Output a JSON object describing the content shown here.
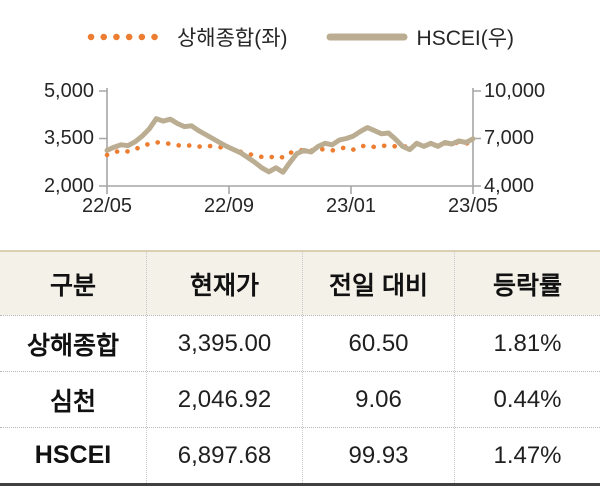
{
  "legend": {
    "shanghai_label": "상해종합(좌)",
    "hscei_label": "HSCEI(우)"
  },
  "chart_data": {
    "type": "line",
    "title": "",
    "x_ticks": [
      "22/05",
      "22/09",
      "23/01",
      "23/05"
    ],
    "x_range": [
      "2022-05",
      "2023-05"
    ],
    "grid": false,
    "legend_position": "top",
    "left_axis": {
      "ticks": [
        "5,000",
        "3,500",
        "2,000"
      ],
      "min": 2000,
      "max": 5000
    },
    "right_axis": {
      "ticks": [
        "10,000",
        "7,000",
        "4,000"
      ],
      "min": 4000,
      "max": 10000
    },
    "series": [
      {
        "name": "상해종합(좌)",
        "axis": "left",
        "style": "dotted",
        "color": "#ED7D31",
        "values": [
          2980,
          3060,
          3120,
          3090,
          3160,
          3260,
          3330,
          3380,
          3360,
          3330,
          3290,
          3260,
          3290,
          3240,
          3280,
          3250,
          3220,
          3250,
          3150,
          3080,
          3020,
          2960,
          2920,
          2890,
          2950,
          2900,
          3050,
          3100,
          3150,
          3120,
          3170,
          3150,
          3120,
          3180,
          3220,
          3150,
          3250,
          3280,
          3230,
          3260,
          3290,
          3250,
          3220,
          3300,
          3320,
          3260,
          3320,
          3280,
          3350,
          3330,
          3380,
          3340,
          3395
        ]
      },
      {
        "name": "HSCEI(우)",
        "axis": "right",
        "style": "solid",
        "color": "#BBAD92",
        "values": [
          6250,
          6450,
          6600,
          6550,
          6800,
          7150,
          7600,
          8250,
          8100,
          8220,
          7950,
          7750,
          7800,
          7500,
          7250,
          7000,
          6750,
          6500,
          6300,
          6100,
          5800,
          5500,
          5150,
          4900,
          5150,
          4870,
          5500,
          6050,
          6250,
          6150,
          6500,
          6700,
          6600,
          6900,
          7000,
          7150,
          7450,
          7690,
          7500,
          7300,
          7350,
          6950,
          6500,
          6300,
          6700,
          6500,
          6700,
          6500,
          6750,
          6650,
          6850,
          6750,
          6980
        ]
      }
    ]
  },
  "table": {
    "headers": [
      "구분",
      "현재가",
      "전일 대비",
      "등락률"
    ],
    "rows": [
      [
        "상해종합",
        "3,395.00",
        "60.50",
        "1.81%"
      ],
      [
        "심천",
        "2,046.92",
        "9.06",
        "0.44%"
      ],
      [
        "HSCEI",
        "6,897.68",
        "99.93",
        "1.47%"
      ]
    ]
  },
  "colors": {
    "shanghai_orange": "#ED7D31",
    "hscei_tan": "#BBAD92",
    "axis_gray": "#A6A6A6",
    "table_top_border": "#DACFB3",
    "table_bottom_border": "#404040",
    "header_bg": "#F4F1E9",
    "text": "#1F1F1F"
  }
}
